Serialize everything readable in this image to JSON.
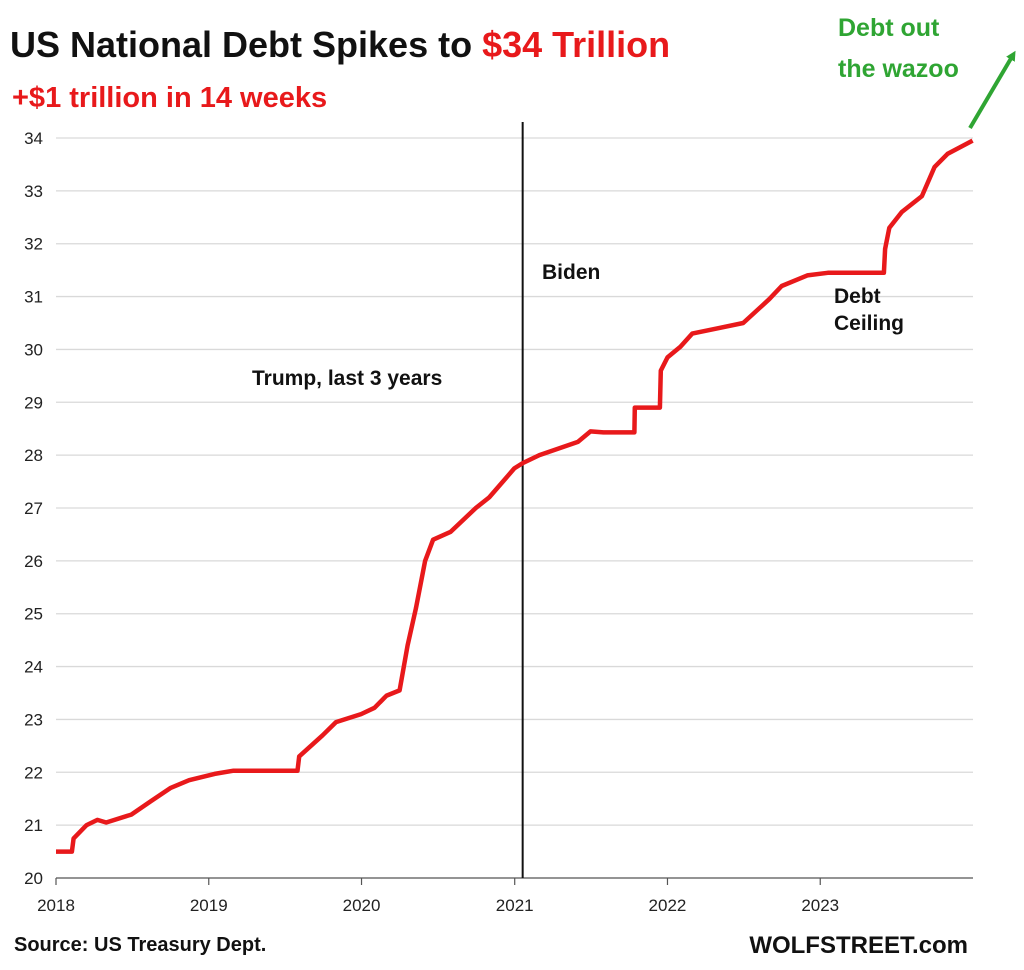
{
  "title": {
    "prefix": "US National Debt Spikes to ",
    "highlight": "$34 Trillion"
  },
  "subtitle": "+$1 trillion  in 14 weeks",
  "source": "Source: US Treasury Dept.",
  "brand": "WOLFSTREET.com",
  "colors": {
    "line": "#e8191b",
    "accent_red": "#e8191b",
    "green": "#2fa533",
    "grid": "#d9d9d9",
    "divider": "#111111"
  },
  "chart_data": {
    "type": "line",
    "xlim": [
      "2018-01-01",
      "2024-01-01"
    ],
    "ylim": [
      20,
      34
    ],
    "x_ticks": [
      "2018",
      "2019",
      "2020",
      "2021",
      "2022",
      "2023"
    ],
    "y_ticks": [
      20,
      21,
      22,
      23,
      24,
      25,
      26,
      27,
      28,
      29,
      30,
      31,
      32,
      33,
      34
    ],
    "grid": true,
    "legend": "none",
    "vertical_marker": {
      "x": "2021-01-20"
    },
    "annotations": {
      "biden": "Biden",
      "trump": "Trump, last 3 years",
      "debt_ceiling_line1": "Debt",
      "debt_ceiling_line2": "Ceiling",
      "wazoo_line1": "Debt out",
      "wazoo_line2": "the wazoo"
    },
    "series": [
      {
        "values_unit": "trillion $",
        "x": [
          "2018-01-01",
          "2018-02-08",
          "2018-02-12",
          "2018-03-15",
          "2018-04-10",
          "2018-05-01",
          "2018-06-30",
          "2018-08-15",
          "2018-10-01",
          "2018-11-15",
          "2019-01-15",
          "2019-03-01",
          "2019-08-01",
          "2019-08-05",
          "2019-09-30",
          "2019-11-01",
          "2019-12-31",
          "2020-02-01",
          "2020-03-01",
          "2020-04-01",
          "2020-04-20",
          "2020-05-10",
          "2020-06-01",
          "2020-06-20",
          "2020-08-01",
          "2020-09-30",
          "2020-11-01",
          "2020-12-31",
          "2021-01-20",
          "2021-03-01",
          "2021-06-01",
          "2021-07-01",
          "2021-08-01",
          "2021-10-14",
          "2021-10-15",
          "2021-12-14",
          "2021-12-16",
          "2022-01-01",
          "2022-02-01",
          "2022-03-01",
          "2022-05-01",
          "2022-07-01",
          "2022-09-01",
          "2022-10-01",
          "2022-12-01",
          "2023-01-19",
          "2023-06-02",
          "2023-06-05",
          "2023-06-15",
          "2023-07-15",
          "2023-09-01",
          "2023-10-01",
          "2023-11-01",
          "2023-12-31"
        ],
        "y": [
          20.5,
          20.5,
          20.75,
          21.0,
          21.1,
          21.05,
          21.2,
          21.45,
          21.7,
          21.85,
          21.97,
          22.03,
          22.03,
          22.3,
          22.7,
          22.95,
          23.1,
          23.22,
          23.45,
          23.55,
          24.4,
          25.1,
          26.0,
          26.4,
          26.55,
          27.0,
          27.2,
          27.75,
          27.85,
          28.0,
          28.25,
          28.45,
          28.43,
          28.43,
          28.9,
          28.9,
          29.6,
          29.85,
          30.05,
          30.3,
          30.4,
          30.5,
          30.95,
          31.2,
          31.4,
          31.45,
          31.45,
          31.9,
          32.3,
          32.6,
          32.9,
          33.45,
          33.7,
          33.95
        ]
      }
    ]
  }
}
